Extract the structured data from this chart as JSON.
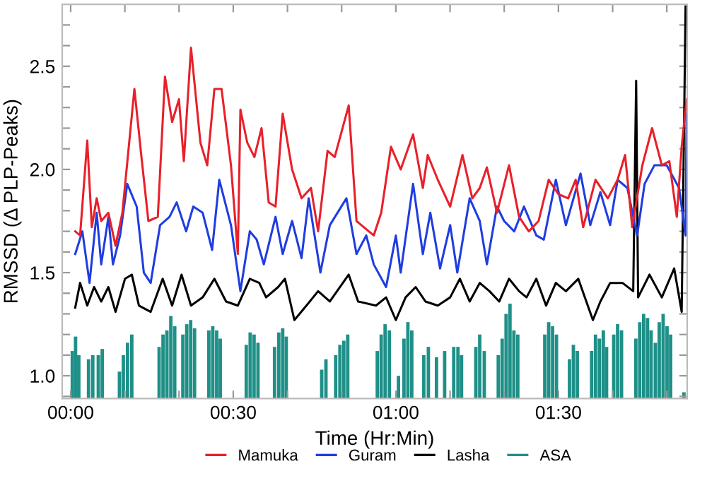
{
  "chart_data": {
    "type": "line",
    "xlabel": "Time (Hr:Min)",
    "ylabel": "RMSSD (Δ PLP-Peaks)",
    "xlim": [
      -0.026,
      1.896
    ],
    "ylim": [
      0.89,
      2.8
    ],
    "xticks": [
      {
        "value": 0,
        "label": "00:00"
      },
      {
        "value": 0.1667,
        "label": null
      },
      {
        "value": 0.3333,
        "label": null
      },
      {
        "value": 0.5,
        "label": "00:30"
      },
      {
        "value": 0.6667,
        "label": null
      },
      {
        "value": 0.8333,
        "label": null
      },
      {
        "value": 1,
        "label": "01:00"
      },
      {
        "value": 1.1667,
        "label": null
      },
      {
        "value": 1.3333,
        "label": null
      },
      {
        "value": 1.5,
        "label": "01:30"
      },
      {
        "value": 1.6667,
        "label": null
      },
      {
        "value": 1.8333,
        "label": null
      }
    ],
    "yticks": [
      {
        "value": 1,
        "label": "1.0"
      },
      {
        "value": 1.5,
        "label": "1.5"
      },
      {
        "value": 2,
        "label": "2.0"
      },
      {
        "value": 2.5,
        "label": "2.5"
      },
      {
        "value": 0.9,
        "label": null
      },
      {
        "value": 1.1,
        "label": null
      },
      {
        "value": 1.2,
        "label": null
      },
      {
        "value": 1.3,
        "label": null
      },
      {
        "value": 1.4,
        "label": null
      },
      {
        "value": 1.6,
        "label": null
      },
      {
        "value": 1.7,
        "label": null
      },
      {
        "value": 1.8,
        "label": null
      },
      {
        "value": 1.9,
        "label": null
      },
      {
        "value": 2.1,
        "label": null
      },
      {
        "value": 2.2,
        "label": null
      },
      {
        "value": 2.3,
        "label": null
      },
      {
        "value": 2.4,
        "label": null
      },
      {
        "value": 2.6,
        "label": null
      },
      {
        "value": 2.7,
        "label": null
      }
    ],
    "grid": false,
    "legend": "bottom",
    "marker": "none",
    "line_style": "solid",
    "series": [
      {
        "name": "Mamuka",
        "color": "#e8202a",
        "x": [
          0.014,
          0.029,
          0.051,
          0.065,
          0.08,
          0.094,
          0.116,
          0.138,
          0.159,
          0.196,
          0.217,
          0.239,
          0.268,
          0.29,
          0.312,
          0.333,
          0.348,
          0.37,
          0.399,
          0.42,
          0.442,
          0.464,
          0.493,
          0.514,
          0.522,
          0.543,
          0.565,
          0.587,
          0.609,
          0.63,
          0.652,
          0.681,
          0.71,
          0.739,
          0.761,
          0.79,
          0.812,
          0.855,
          0.879,
          0.932,
          0.955,
          0.985,
          1.015,
          1.053,
          1.083,
          1.098,
          1.129,
          1.167,
          1.205,
          1.235,
          1.258,
          1.28,
          1.311,
          1.348,
          1.379,
          1.409,
          1.439,
          1.47,
          1.5,
          1.53,
          1.553,
          1.576,
          1.614,
          1.652,
          1.682,
          1.705,
          1.727,
          1.758,
          1.788,
          1.818,
          1.841,
          1.864,
          1.879,
          1.894
        ],
        "values": [
          1.7,
          1.68,
          2.14,
          1.72,
          1.86,
          1.75,
          1.79,
          1.63,
          1.79,
          2.39,
          2.07,
          1.75,
          1.77,
          2.45,
          2.23,
          2.34,
          2.04,
          2.59,
          2.13,
          2.02,
          2.39,
          2.39,
          2.02,
          1.59,
          2.29,
          2.13,
          2.06,
          2.2,
          1.84,
          1.82,
          2.27,
          2.0,
          1.86,
          1.91,
          1.7,
          2.09,
          2.06,
          2.31,
          1.75,
          1.68,
          1.79,
          2.11,
          2.0,
          2.17,
          1.91,
          2.07,
          1.95,
          1.82,
          2.07,
          1.86,
          1.91,
          2.01,
          1.79,
          2.02,
          1.77,
          1.7,
          1.75,
          1.95,
          1.88,
          1.86,
          1.95,
          1.72,
          1.95,
          1.86,
          1.95,
          2.07,
          1.72,
          2.02,
          2.2,
          2.02,
          2.04,
          1.77,
          2.11,
          2.34
        ]
      },
      {
        "name": "Guram",
        "color": "#1f3de0",
        "x": [
          0.014,
          0.036,
          0.058,
          0.08,
          0.094,
          0.116,
          0.13,
          0.152,
          0.174,
          0.203,
          0.225,
          0.246,
          0.275,
          0.304,
          0.326,
          0.355,
          0.377,
          0.406,
          0.435,
          0.457,
          0.493,
          0.522,
          0.551,
          0.572,
          0.594,
          0.63,
          0.652,
          0.681,
          0.71,
          0.732,
          0.768,
          0.797,
          0.848,
          0.879,
          0.909,
          0.932,
          0.97,
          1.0,
          1.015,
          1.053,
          1.083,
          1.106,
          1.136,
          1.167,
          1.189,
          1.227,
          1.258,
          1.28,
          1.311,
          1.333,
          1.364,
          1.394,
          1.432,
          1.455,
          1.492,
          1.523,
          1.568,
          1.598,
          1.629,
          1.659,
          1.682,
          1.712,
          1.742,
          1.765,
          1.795,
          1.833,
          1.871,
          1.891,
          1.894
        ],
        "values": [
          1.59,
          1.7,
          1.45,
          1.79,
          1.54,
          1.77,
          1.54,
          1.68,
          1.93,
          1.82,
          1.5,
          1.45,
          1.73,
          1.77,
          1.84,
          1.7,
          1.82,
          1.79,
          1.61,
          1.95,
          1.73,
          1.41,
          1.7,
          1.66,
          1.54,
          1.77,
          1.59,
          1.75,
          1.57,
          1.86,
          1.5,
          1.73,
          1.86,
          1.59,
          1.68,
          1.54,
          1.43,
          1.68,
          1.5,
          1.93,
          1.59,
          1.79,
          1.52,
          1.73,
          1.5,
          1.86,
          1.75,
          1.54,
          1.82,
          1.75,
          1.7,
          1.82,
          1.68,
          1.66,
          1.95,
          1.73,
          1.98,
          1.73,
          1.89,
          1.73,
          1.95,
          1.91,
          1.68,
          1.93,
          2.02,
          2.02,
          1.91,
          1.68,
          2.27
        ]
      },
      {
        "name": "Lasha",
        "color": "#000000",
        "x": [
          0.014,
          0.029,
          0.051,
          0.072,
          0.094,
          0.116,
          0.138,
          0.167,
          0.188,
          0.21,
          0.246,
          0.283,
          0.312,
          0.341,
          0.37,
          0.406,
          0.442,
          0.478,
          0.514,
          0.551,
          0.58,
          0.601,
          0.638,
          0.659,
          0.688,
          0.725,
          0.761,
          0.797,
          0.855,
          0.884,
          0.939,
          0.97,
          1.0,
          1.03,
          1.061,
          1.091,
          1.129,
          1.167,
          1.197,
          1.227,
          1.258,
          1.288,
          1.318,
          1.348,
          1.379,
          1.402,
          1.432,
          1.462,
          1.492,
          1.523,
          1.561,
          1.606,
          1.629,
          1.659,
          1.697,
          1.73,
          1.739,
          1.745,
          1.78,
          1.818,
          1.856,
          1.879,
          1.891
        ],
        "values": [
          1.33,
          1.45,
          1.34,
          1.43,
          1.36,
          1.43,
          1.31,
          1.47,
          1.49,
          1.34,
          1.31,
          1.47,
          1.34,
          1.49,
          1.34,
          1.38,
          1.47,
          1.36,
          1.34,
          1.47,
          1.45,
          1.38,
          1.43,
          1.47,
          1.27,
          1.34,
          1.41,
          1.36,
          1.49,
          1.36,
          1.34,
          1.38,
          1.27,
          1.38,
          1.43,
          1.36,
          1.34,
          1.38,
          1.47,
          1.36,
          1.45,
          1.41,
          1.36,
          1.47,
          1.41,
          1.38,
          1.47,
          1.34,
          1.45,
          1.41,
          1.47,
          1.27,
          1.36,
          1.45,
          1.45,
          1.41,
          2.43,
          1.38,
          1.49,
          1.38,
          1.52,
          1.31,
          2.79
        ]
      },
      {
        "name": "ASA",
        "color": "#1f9088",
        "type": "bar",
        "x": [
          0.005,
          0.015,
          0.025,
          0.055,
          0.068,
          0.085,
          0.097,
          0.15,
          0.162,
          0.175,
          0.188,
          0.272,
          0.284,
          0.296,
          0.308,
          0.32,
          0.345,
          0.357,
          0.369,
          0.381,
          0.425,
          0.437,
          0.449,
          0.46,
          0.54,
          0.552,
          0.564,
          0.576,
          0.627,
          0.64,
          0.652,
          0.663,
          0.772,
          0.785,
          0.815,
          0.828,
          0.84,
          0.852,
          0.943,
          0.955,
          0.967,
          0.98,
          1.008,
          1.025,
          1.037,
          1.049,
          1.086,
          1.1,
          1.125,
          1.15,
          1.178,
          1.191,
          1.202,
          1.246,
          1.258,
          1.272,
          1.315,
          1.327,
          1.339,
          1.351,
          1.363,
          1.375,
          1.458,
          1.47,
          1.482,
          1.494,
          1.534,
          1.546,
          1.558,
          1.602,
          1.614,
          1.626,
          1.638,
          1.648,
          1.67,
          1.682,
          1.694,
          1.738,
          1.75,
          1.762,
          1.774,
          1.785,
          1.798,
          1.81,
          1.822,
          1.834,
          1.845,
          1.886
        ],
        "values": [
          1.12,
          1.19,
          1.1,
          1.08,
          1.1,
          1.1,
          1.13,
          1.02,
          1.1,
          1.16,
          1.2,
          1.14,
          1.2,
          1.22,
          1.29,
          1.24,
          1.2,
          1.25,
          1.27,
          1.23,
          1.22,
          1.24,
          1.22,
          1.18,
          1.15,
          1.21,
          1.2,
          1.16,
          1.14,
          1.21,
          1.23,
          1.19,
          1.03,
          1.08,
          1.1,
          1.15,
          1.17,
          1.2,
          1.12,
          1.2,
          1.25,
          1.22,
          1.0,
          1.18,
          1.26,
          1.22,
          1.1,
          1.14,
          1.09,
          1.12,
          1.14,
          1.14,
          1.1,
          1.14,
          1.2,
          1.12,
          1.1,
          1.18,
          1.3,
          1.35,
          1.22,
          1.2,
          1.2,
          1.26,
          1.24,
          1.2,
          1.08,
          1.15,
          1.12,
          1.12,
          1.2,
          1.18,
          1.22,
          1.14,
          1.2,
          1.25,
          1.22,
          1.18,
          1.26,
          1.3,
          1.28,
          1.22,
          1.16,
          1.26,
          1.3,
          1.24,
          1.2,
          0.92
        ]
      }
    ]
  }
}
